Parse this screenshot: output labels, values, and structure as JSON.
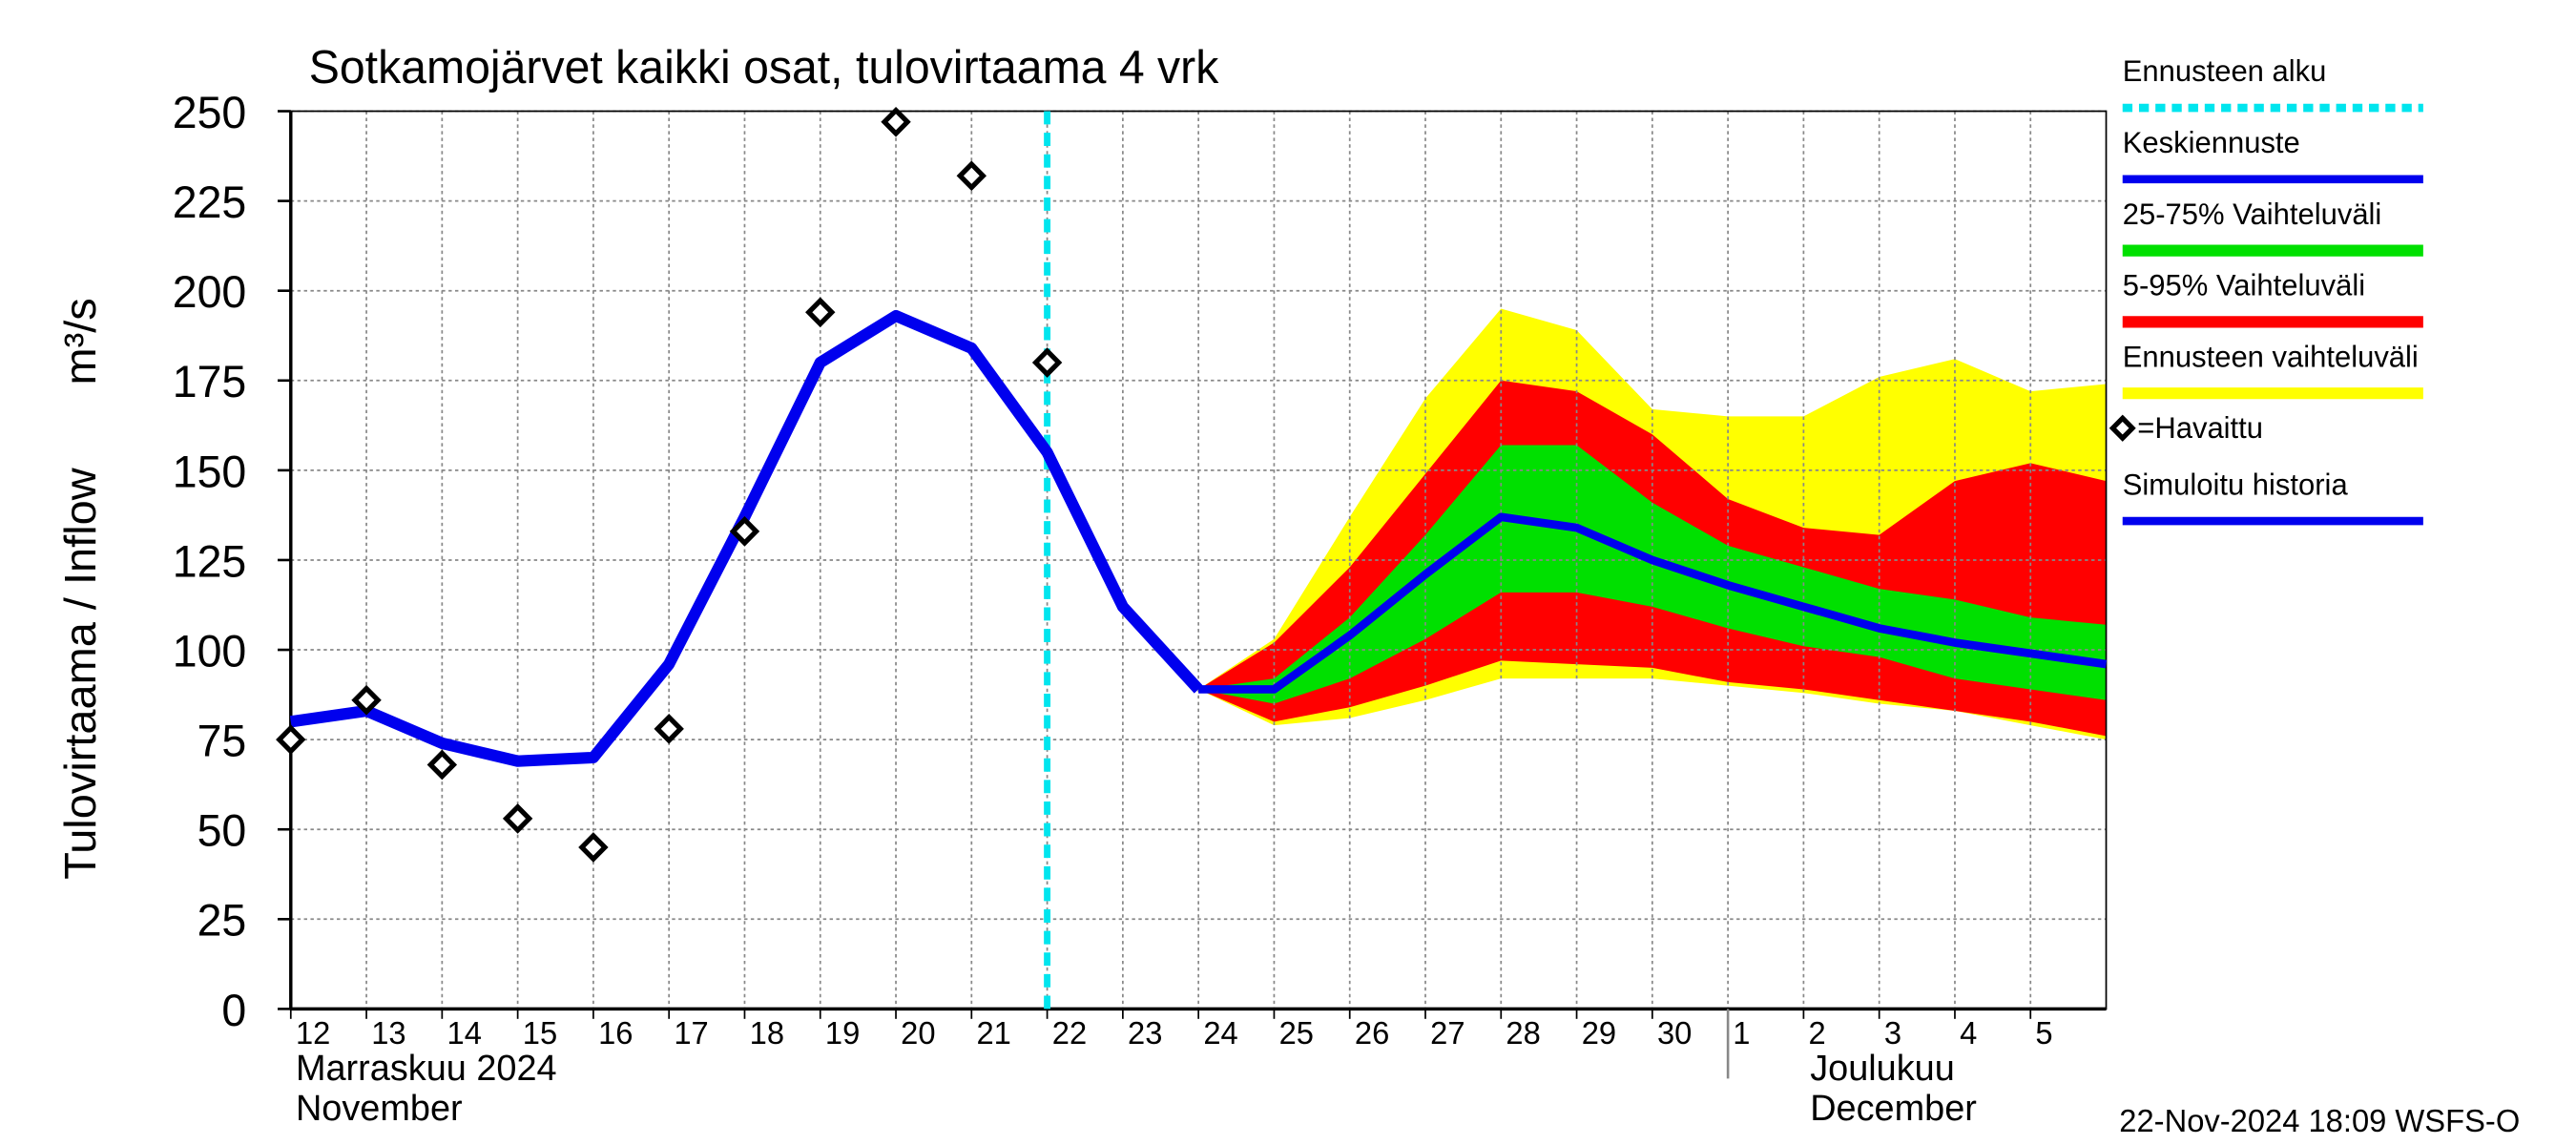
{
  "chart_data": {
    "type": "line",
    "title": "Sotkamojärvet kaikki osat, tulovirtaama  4 vrk",
    "y_label": "Tulovirtaama / Inflow",
    "y_unit": "m³/s",
    "month_labels": [
      {
        "x": "2024-11-12",
        "fi": "Marraskuu 2024",
        "en": "November"
      },
      {
        "x": "2024-12-01",
        "fi": "Joulukuu",
        "en": "December"
      }
    ],
    "footer": "22-Nov-2024 18:09 WSFS-O",
    "ylim": [
      0,
      250
    ],
    "yticks": [
      0,
      25,
      50,
      75,
      100,
      125,
      150,
      175,
      200,
      225,
      250
    ],
    "xlim": [
      "2024-11-12",
      "2024-12-06"
    ],
    "xticks": [
      {
        "value": "2024-11-12",
        "label": "12"
      },
      {
        "value": "2024-11-13",
        "label": "13"
      },
      {
        "value": "2024-11-14",
        "label": "14"
      },
      {
        "value": "2024-11-15",
        "label": "15"
      },
      {
        "value": "2024-11-16",
        "label": "16"
      },
      {
        "value": "2024-11-17",
        "label": "17"
      },
      {
        "value": "2024-11-18",
        "label": "18"
      },
      {
        "value": "2024-11-19",
        "label": "19"
      },
      {
        "value": "2024-11-20",
        "label": "20"
      },
      {
        "value": "2024-11-21",
        "label": "21"
      },
      {
        "value": "2024-11-22",
        "label": "22"
      },
      {
        "value": "2024-11-23",
        "label": "23"
      },
      {
        "value": "2024-11-24",
        "label": "24"
      },
      {
        "value": "2024-11-25",
        "label": "25"
      },
      {
        "value": "2024-11-26",
        "label": "26"
      },
      {
        "value": "2024-11-27",
        "label": "27"
      },
      {
        "value": "2024-11-28",
        "label": "28"
      },
      {
        "value": "2024-11-29",
        "label": "29"
      },
      {
        "value": "2024-11-30",
        "label": "30"
      },
      {
        "value": "2024-12-01",
        "label": "1"
      },
      {
        "value": "2024-12-02",
        "label": "2"
      },
      {
        "value": "2024-12-03",
        "label": "3"
      },
      {
        "value": "2024-12-04",
        "label": "4"
      },
      {
        "value": "2024-12-05",
        "label": "5"
      }
    ],
    "grid": true,
    "forecast_start": {
      "name": "Ennusteen alku",
      "x": "2024-11-22",
      "color": "#00e5ee"
    },
    "bands": [
      {
        "name": "Ennusteen vaihteluväli",
        "color": "#ffff00",
        "x": [
          "2024-11-24",
          "2024-11-25",
          "2024-11-26",
          "2024-11-27",
          "2024-11-28",
          "2024-11-29",
          "2024-11-30",
          "2024-12-01",
          "2024-12-02",
          "2024-12-03",
          "2024-12-04",
          "2024-12-05",
          "2024-12-06"
        ],
        "low": [
          89,
          79,
          81,
          86,
          92,
          92,
          92,
          90,
          88,
          85,
          83,
          79,
          75
        ],
        "high": [
          89,
          103,
          137,
          170,
          195,
          189,
          167,
          165,
          165,
          176,
          181,
          172,
          174
        ]
      },
      {
        "name": "5-95% Vaihteluväli",
        "color": "#ff0000",
        "x": [
          "2024-11-24",
          "2024-11-25",
          "2024-11-26",
          "2024-11-27",
          "2024-11-28",
          "2024-11-29",
          "2024-11-30",
          "2024-12-01",
          "2024-12-02",
          "2024-12-03",
          "2024-12-04",
          "2024-12-05",
          "2024-12-06"
        ],
        "low": [
          89,
          80,
          84,
          90,
          97,
          96,
          95,
          91,
          89,
          86,
          83,
          80,
          76
        ],
        "high": [
          89,
          102,
          123,
          149,
          175,
          172,
          160,
          142,
          134,
          132,
          147,
          152,
          147
        ]
      },
      {
        "name": "25-75% Vaihteluväli",
        "color": "#00e000",
        "x": [
          "2024-11-24",
          "2024-11-25",
          "2024-11-26",
          "2024-11-27",
          "2024-11-28",
          "2024-11-29",
          "2024-11-30",
          "2024-12-01",
          "2024-12-02",
          "2024-12-03",
          "2024-12-04",
          "2024-12-05",
          "2024-12-06"
        ],
        "low": [
          89,
          85,
          92,
          103,
          116,
          116,
          112,
          106,
          101,
          98,
          92,
          89,
          86
        ],
        "high": [
          89,
          92,
          109,
          132,
          157,
          157,
          141,
          129,
          123,
          117,
          114,
          109,
          107
        ]
      }
    ],
    "series": [
      {
        "name": "Keskiennuste",
        "color": "#0000ee",
        "x": [
          "2024-11-24",
          "2024-11-25",
          "2024-11-26",
          "2024-11-27",
          "2024-11-28",
          "2024-11-29",
          "2024-11-30",
          "2024-12-01",
          "2024-12-02",
          "2024-12-03",
          "2024-12-04",
          "2024-12-05",
          "2024-12-06"
        ],
        "values": [
          89,
          89,
          104,
          121,
          137,
          134,
          125,
          118,
          112,
          106,
          102,
          99,
          96
        ]
      },
      {
        "name": "Simuloitu historia",
        "color": "#0000ee",
        "x": [
          "2024-11-12",
          "2024-11-13",
          "2024-11-14",
          "2024-11-15",
          "2024-11-16",
          "2024-11-17",
          "2024-11-18",
          "2024-11-19",
          "2024-11-20",
          "2024-11-21",
          "2024-11-22",
          "2024-11-23",
          "2024-11-24"
        ],
        "values": [
          80,
          83,
          74,
          69,
          70,
          96,
          137,
          180,
          193,
          184,
          155,
          112,
          89
        ]
      },
      {
        "name": "=Havaittu",
        "color": "#000000",
        "marker": "diamond",
        "x": [
          "2024-11-12",
          "2024-11-13",
          "2024-11-14",
          "2024-11-15",
          "2024-11-16",
          "2024-11-17",
          "2024-11-18",
          "2024-11-19",
          "2024-11-20",
          "2024-11-21",
          "2024-11-22"
        ],
        "values": [
          75,
          86,
          68,
          53,
          45,
          78,
          133,
          194,
          247,
          232,
          180
        ]
      }
    ]
  }
}
